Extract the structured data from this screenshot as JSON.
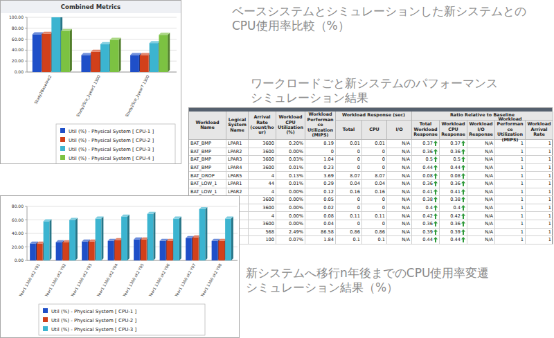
{
  "chart_data": [
    {
      "type": "bar",
      "title": "Combined Metrics",
      "categories": [
        "Study2Baseline2",
        "Study2Sce_2year1 1300",
        "Study2Sce_2year7 1300"
      ],
      "series": [
        {
          "name": "Util (%) - Physical System [ CPU-1 ]",
          "color": "#1f4fc8",
          "values": [
            69,
            31,
            31
          ]
        },
        {
          "name": "Util (%) - Physical System [ CPU-2 ]",
          "color": "#d2401a",
          "values": [
            70,
            37,
            31
          ]
        },
        {
          "name": "Util (%) - Physical System [ CPU-3 ]",
          "color": "#3cb4d0",
          "values": [
            100,
            51,
            53
          ]
        },
        {
          "name": "Util (%) - Physical System [ CPU-4 ]",
          "color": "#7cc242",
          "values": [
            75,
            59,
            68
          ]
        }
      ],
      "ylim": [
        0,
        100
      ],
      "yticks": [
        {
          "value": 0,
          "label": "0.00"
        },
        {
          "value": 20,
          "label": "20.00"
        },
        {
          "value": 40,
          "label": "40.00"
        },
        {
          "value": 60,
          "label": "60.00"
        },
        {
          "value": 80,
          "label": "80.00"
        },
        {
          "value": 100,
          "label": "100.00"
        }
      ],
      "grid": true,
      "legend": "bottom"
    },
    {
      "type": "bar",
      "categories": [
        "Year1 1300 sk2 Y01",
        "Year1 1300 sk2 Y02",
        "Year1 1300 sk2 Y03",
        "Year1 1300 sk2 Y04",
        "Year1 1300 sk2 Y05",
        "Year1 1300 sk2 Y06",
        "Year1 1300 sk2 Y07",
        "Year1 1300 sk2 Y08"
      ],
      "series": [
        {
          "name": "Util (%) - Physical System [ CPU-1 ]",
          "color": "#1f4fc8",
          "values": [
            25,
            27,
            28,
            29,
            31,
            29,
            33,
            29
          ]
        },
        {
          "name": "Util (%) - Physical System [ CPU-2 ]",
          "color": "#d2401a",
          "values": [
            25,
            27,
            28,
            30,
            31,
            29,
            34,
            29
          ]
        },
        {
          "name": "Util (%) - Physical System [ CPU-3 ]",
          "color": "#3cb4d0",
          "values": [
            58,
            60,
            62,
            65,
            69,
            62,
            76,
            62
          ]
        }
      ],
      "ylim": [
        0,
        80
      ],
      "yticks": [
        {
          "value": 0,
          "label": "0.00"
        },
        {
          "value": 20,
          "label": "20.00"
        },
        {
          "value": 40,
          "label": "40.00"
        },
        {
          "value": 60,
          "label": "60.00"
        },
        {
          "value": 80,
          "label": "80.00"
        }
      ],
      "grid": true,
      "legend": "bottom"
    }
  ],
  "captions": [
    {
      "lines": [
        "ベースシステムとシミュレーションした新システムとの",
        "CPU使用率比較（%）"
      ]
    },
    {
      "lines": [
        "ワークロードごと新システムのパフォーマンス",
        "シミュレーション結果"
      ]
    },
    {
      "lines": [
        "新システムへ移行n年後までのCPU使用率変遷",
        "シミュレーション結果（%）"
      ]
    }
  ],
  "table": {
    "columns": [
      {
        "label": "Workload Name"
      },
      {
        "label": "Logical System Name"
      },
      {
        "label": "Arrival Rate (count/hour)"
      },
      {
        "label": "Workload CPU Utilization (%)"
      },
      {
        "label": "Workload Performance Utilization (MIPS)"
      },
      {
        "label": "Total",
        "group": "Workload Response (sec)"
      },
      {
        "label": "CPU",
        "group": "Workload Response (sec)"
      },
      {
        "label": "I/O",
        "group": "Workload Response (sec)"
      },
      {
        "label": "Total Workload Response",
        "group": "Ratio Relative to Baseline",
        "marker": "arrow-up"
      },
      {
        "label": "Workload CPU Response",
        "group": "Ratio Relative to Baseline",
        "marker": "arrow-up"
      },
      {
        "label": "Workload I/O Response",
        "group": "Ratio Relative to Baseline"
      },
      {
        "label": "Workload Performance Utilization (MIPS)",
        "group": "Ratio Relative to Baseline"
      },
      {
        "label": "Workload Arrival Rate",
        "group": "Ratio Relative to Baseline"
      }
    ],
    "rows": [
      [
        "BAT_BMP",
        "LPAR1",
        3600,
        "0.20%",
        8.19,
        0.01,
        0.01,
        "N/A",
        0.37,
        0.37,
        "N/A",
        1,
        1
      ],
      [
        "BAT_BMP",
        "LPAR2",
        3600,
        "0.00%",
        0,
        0,
        0,
        "N/A",
        0.36,
        0.36,
        "N/A",
        1,
        1
      ],
      [
        "BAT_BMP",
        "LPAR3",
        3600,
        "0.03%",
        1.04,
        0,
        0,
        "N/A",
        0.5,
        0.5,
        "N/A",
        1,
        1
      ],
      [
        "BAT_BMP",
        "LPAR4",
        3600,
        "0.01%",
        0.23,
        0,
        0,
        "N/A",
        0.44,
        0.44,
        "N/A",
        1,
        1
      ],
      [
        "BAT_DROP",
        "LPAR5",
        4,
        "0.13%",
        3.69,
        8.07,
        8.07,
        "N/A",
        0.08,
        0.08,
        "N/A",
        1,
        1
      ],
      [
        "BAT_LOW_1",
        "LPAR1",
        44,
        "0.01%",
        0.29,
        0.04,
        0.04,
        "N/A",
        0.36,
        0.36,
        "N/A",
        1,
        1
      ],
      [
        "BAT_LOW_1",
        "LPAR2",
        4,
        "0.00%",
        0.12,
        0.16,
        0.16,
        "N/A",
        0.41,
        0.41,
        "N/A",
        1,
        1
      ],
      [
        null,
        null,
        3600,
        "0.00%",
        0.05,
        0,
        0,
        "N/A",
        0.38,
        0.38,
        "N/A",
        1,
        1
      ],
      [
        null,
        null,
        3600,
        "0.00%",
        0.02,
        0,
        0,
        "N/A",
        0.4,
        0.4,
        "N/A",
        1,
        1
      ],
      [
        null,
        null,
        4,
        "0.00%",
        0.08,
        0.11,
        0.11,
        "N/A",
        0.42,
        0.42,
        "N/A",
        1,
        1
      ],
      [
        null,
        null,
        3600,
        "0.00%",
        0.04,
        0,
        0,
        "N/A",
        0.36,
        0.36,
        "N/A",
        1,
        1
      ],
      [
        null,
        null,
        568,
        "2.49%",
        86.58,
        0.86,
        0.86,
        "N/A",
        0.39,
        0.39,
        "N/A",
        1,
        1
      ],
      [
        null,
        null,
        100,
        "0.07%",
        1.84,
        0.1,
        0.1,
        "N/A",
        0.44,
        0.44,
        "N/A",
        1,
        1
      ]
    ]
  }
}
